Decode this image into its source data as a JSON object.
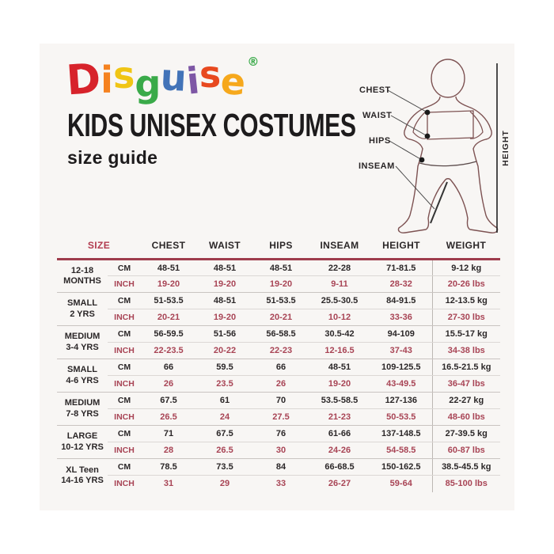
{
  "brand": {
    "letters": [
      {
        "ch": "D",
        "color": "#d7232b"
      },
      {
        "ch": "i",
        "color": "#f58220"
      },
      {
        "ch": "s",
        "color": "#f0c514"
      },
      {
        "ch": "g",
        "color": "#3aaa49"
      },
      {
        "ch": "u",
        "color": "#4273b8"
      },
      {
        "ch": "i",
        "color": "#7e57a5"
      },
      {
        "ch": "s",
        "color": "#e8491f"
      },
      {
        "ch": "e",
        "color": "#f6a81c"
      }
    ],
    "registered_mark": "®",
    "registered_color": "#3aaa49"
  },
  "header": {
    "title": "KIDS UNISEX COSTUMES",
    "subtitle": "size guide"
  },
  "diagram": {
    "chest_label": "CHEST",
    "waist_label": "WAIST",
    "hips_label": "HIPS",
    "inseam_label": "INSEAM",
    "height_label": "HEIGHT"
  },
  "table": {
    "headers": [
      "SIZE",
      "CHEST",
      "WAIST",
      "HIPS",
      "INSEAM",
      "HEIGHT",
      "WEIGHT"
    ],
    "units": {
      "cm": "CM",
      "inch": "INCH"
    },
    "rows": [
      {
        "size_line1": "12-18",
        "size_line2": "MONTHS",
        "cm": [
          "48-51",
          "48-51",
          "48-51",
          "22-28",
          "71-81.5",
          "9-12 kg"
        ],
        "inch": [
          "19-20",
          "19-20",
          "19-20",
          "9-11",
          "28-32",
          "20-26 lbs"
        ]
      },
      {
        "size_line1": "SMALL",
        "size_line2": "2 YRS",
        "cm": [
          "51-53.5",
          "48-51",
          "51-53.5",
          "25.5-30.5",
          "84-91.5",
          "12-13.5 kg"
        ],
        "inch": [
          "20-21",
          "19-20",
          "20-21",
          "10-12",
          "33-36",
          "27-30 lbs"
        ]
      },
      {
        "size_line1": "MEDIUM",
        "size_line2": "3-4 YRS",
        "cm": [
          "56-59.5",
          "51-56",
          "56-58.5",
          "30.5-42",
          "94-109",
          "15.5-17 kg"
        ],
        "inch": [
          "22-23.5",
          "20-22",
          "22-23",
          "12-16.5",
          "37-43",
          "34-38 lbs"
        ]
      },
      {
        "size_line1": "SMALL",
        "size_line2": "4-6 YRS",
        "cm": [
          "66",
          "59.5",
          "66",
          "48-51",
          "109-125.5",
          "16.5-21.5 kg"
        ],
        "inch": [
          "26",
          "23.5",
          "26",
          "19-20",
          "43-49.5",
          "36-47 lbs"
        ]
      },
      {
        "size_line1": "MEDIUM",
        "size_line2": "7-8 YRS",
        "cm": [
          "67.5",
          "61",
          "70",
          "53.5-58.5",
          "127-136",
          "22-27 kg"
        ],
        "inch": [
          "26.5",
          "24",
          "27.5",
          "21-23",
          "50-53.5",
          "48-60 lbs"
        ]
      },
      {
        "size_line1": "LARGE",
        "size_line2": "10-12 YRS",
        "cm": [
          "71",
          "67.5",
          "76",
          "61-66",
          "137-148.5",
          "27-39.5 kg"
        ],
        "inch": [
          "28",
          "26.5",
          "30",
          "24-26",
          "54-58.5",
          "60-87 lbs"
        ]
      },
      {
        "size_line1": "XL Teen",
        "size_line2": "14-16 YRS",
        "cm": [
          "78.5",
          "73.5",
          "84",
          "66-68.5",
          "150-162.5",
          "38.5-45.5 kg"
        ],
        "inch": [
          "31",
          "29",
          "33",
          "26-27",
          "59-64",
          "85-100 lbs"
        ]
      }
    ]
  },
  "colors": {
    "accent_maroon": "#a84455",
    "rule_maroon": "#9e3c4c",
    "text_black": "#2b2728",
    "card_bg": "#f8f6f4",
    "figure_outline": "#7d5252"
  }
}
